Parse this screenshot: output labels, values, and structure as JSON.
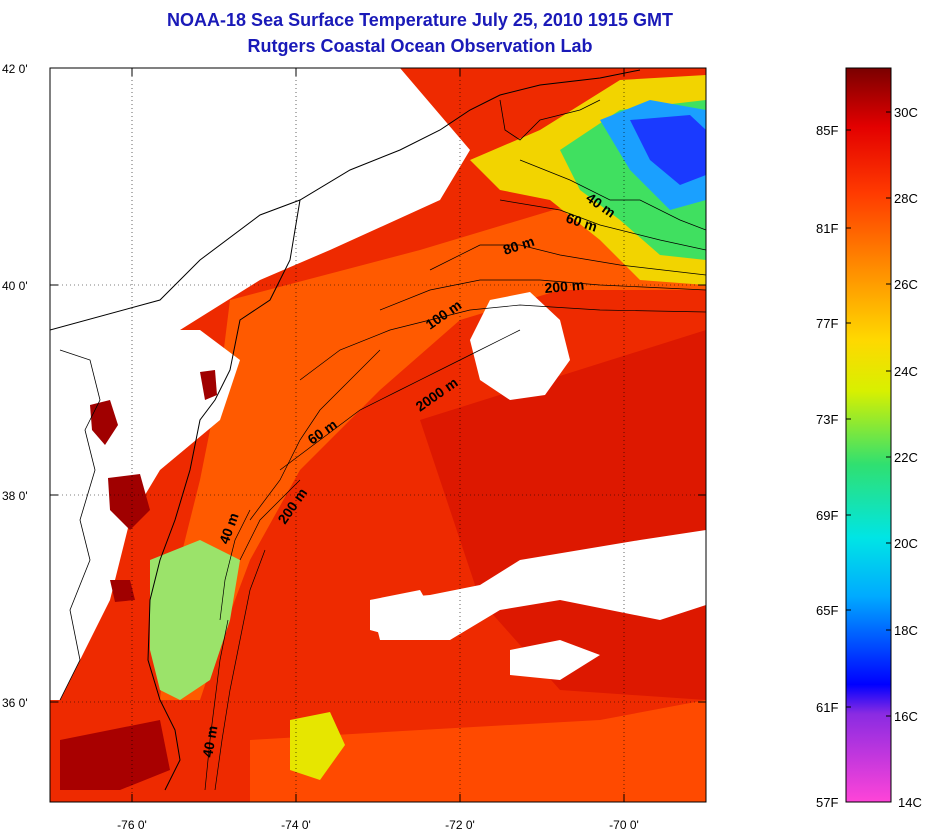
{
  "title": "NOAA-18 Sea Surface Temperature July 25, 2010 1915 GMT",
  "subtitle": "Rutgers Coastal Ocean Observation Lab",
  "axes": {
    "lat_labels": [
      {
        "value": 42,
        "label": "42 0'"
      },
      {
        "value": 40,
        "label": "40 0'"
      },
      {
        "value": 38,
        "label": "38 0'"
      },
      {
        "value": 36,
        "label": "36 0'"
      }
    ],
    "lon_labels": [
      {
        "value": -76,
        "label": "-76 0'"
      },
      {
        "value": -74,
        "label": "-74 0'"
      },
      {
        "value": -72,
        "label": "-72 0'"
      },
      {
        "value": -70,
        "label": "-70 0'"
      }
    ]
  },
  "contour_labels": [
    "40 m",
    "60 m",
    "80 m",
    "200 m",
    "100 m",
    "2000 m",
    "60 m",
    "200 m",
    "40 m",
    "40 m"
  ],
  "colorbar": {
    "fahrenheit": [
      "85F",
      "81F",
      "77F",
      "73F",
      "69F",
      "65F",
      "61F",
      "57F"
    ],
    "celsius": [
      "30C",
      "28C",
      "26C",
      "24C",
      "22C",
      "20C",
      "18C",
      "16C",
      "14C"
    ],
    "min_c": 14,
    "max_c": 31,
    "colors": [
      "#ff44d8",
      "#8a2be2",
      "#0000ff",
      "#00aaff",
      "#00e5e5",
      "#30e070",
      "#d8f000",
      "#ffd800",
      "#ff8a00",
      "#ff3a00",
      "#e30000",
      "#7a0000"
    ]
  }
}
